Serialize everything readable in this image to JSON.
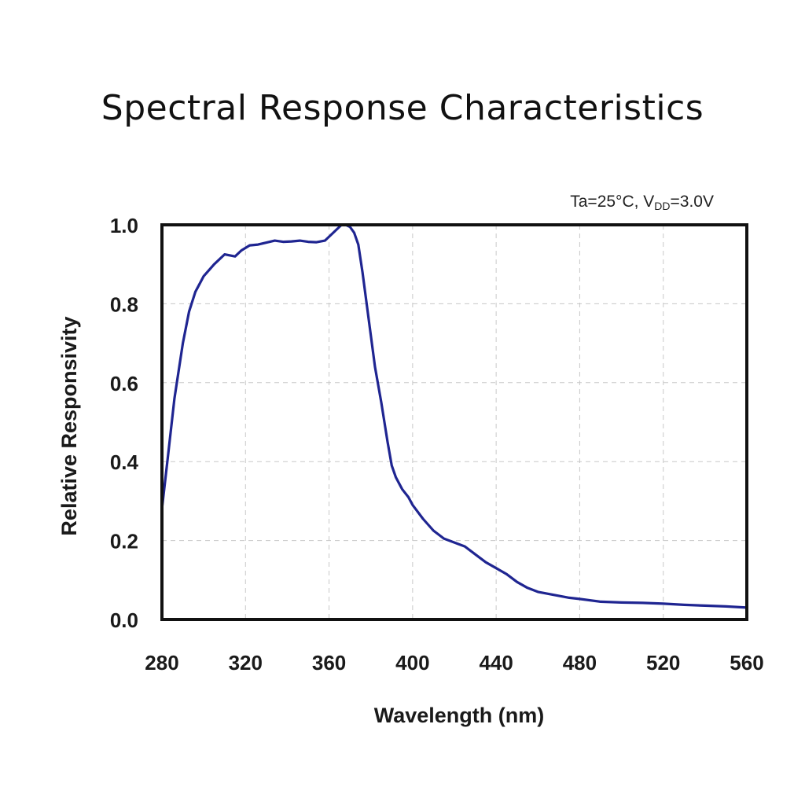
{
  "chart_data": {
    "type": "line",
    "title": "Spectral Response Characteristics",
    "annotation": {
      "prefix": "Ta=25°C, V",
      "subscript": "DD",
      "suffix": "=3.0V"
    },
    "xlabel": "Wavelength (nm)",
    "ylabel": "Relative Responsivity",
    "xlim": [
      280,
      560
    ],
    "ylim": [
      0.0,
      1.0
    ],
    "xticks": [
      "280",
      "320",
      "360",
      "400",
      "440",
      "480",
      "520",
      "560"
    ],
    "yticks": [
      "0.0",
      "0.2",
      "0.4",
      "0.6",
      "0.8",
      "1.0"
    ],
    "grid": true,
    "line_color": "#1f2591",
    "series": [
      {
        "x": [
          280,
          283,
          286,
          290,
          293,
          296,
          300,
          305,
          310,
          315,
          318,
          322,
          326,
          330,
          334,
          338,
          342,
          346,
          350,
          354,
          358,
          361,
          364,
          366,
          368,
          370,
          372,
          374,
          376,
          378,
          380,
          382,
          385,
          388,
          390,
          392,
          395,
          398,
          400,
          405,
          410,
          415,
          420,
          425,
          430,
          435,
          440,
          445,
          450,
          455,
          460,
          465,
          470,
          475,
          480,
          490,
          500,
          510,
          520,
          530,
          540,
          550,
          560
        ],
        "y": [
          0.28,
          0.42,
          0.56,
          0.7,
          0.78,
          0.83,
          0.87,
          0.9,
          0.925,
          0.92,
          0.935,
          0.948,
          0.95,
          0.955,
          0.96,
          0.957,
          0.958,
          0.96,
          0.957,
          0.956,
          0.96,
          0.975,
          0.99,
          1.0,
          1.0,
          0.995,
          0.98,
          0.95,
          0.88,
          0.8,
          0.72,
          0.64,
          0.55,
          0.45,
          0.39,
          0.36,
          0.33,
          0.31,
          0.29,
          0.255,
          0.225,
          0.205,
          0.195,
          0.185,
          0.165,
          0.145,
          0.13,
          0.115,
          0.095,
          0.08,
          0.07,
          0.065,
          0.06,
          0.055,
          0.052,
          0.045,
          0.043,
          0.042,
          0.04,
          0.037,
          0.035,
          0.033,
          0.03
        ]
      }
    ]
  }
}
